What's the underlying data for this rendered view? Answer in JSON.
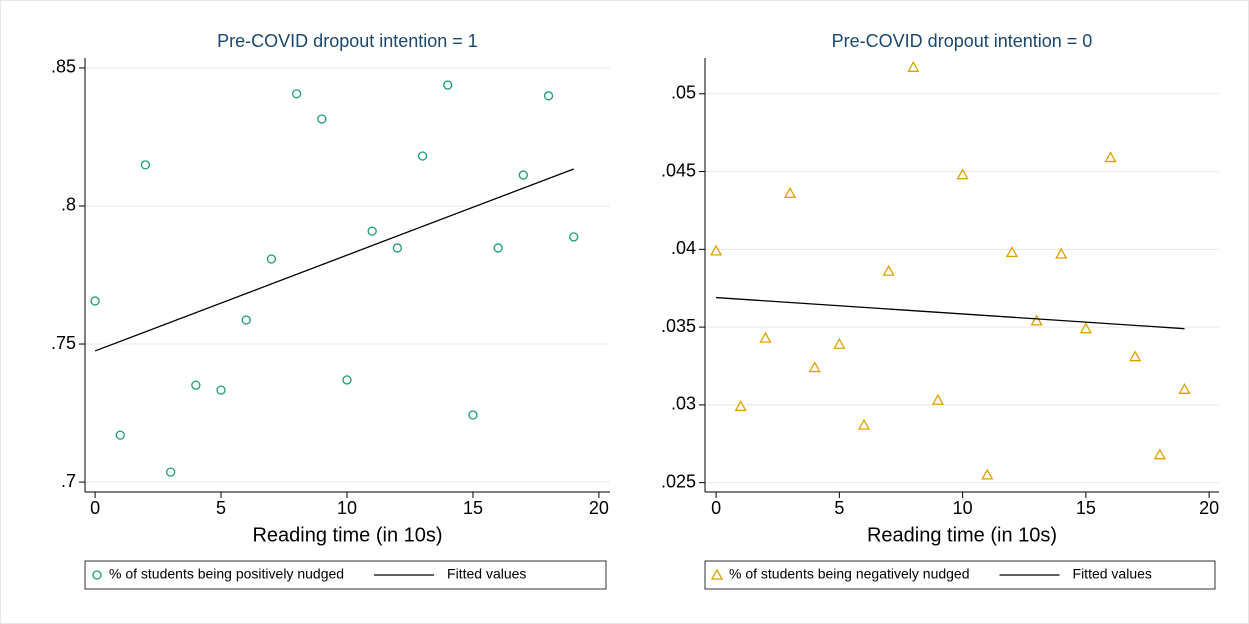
{
  "chart_data": [
    {
      "type": "scatter",
      "title": "Pre-COVID dropout intention = 1",
      "x_label": "Reading time (in 10s)",
      "xlim": [
        -0.4,
        20.44
      ],
      "xticks": [
        0,
        5,
        10,
        15,
        20
      ],
      "ylim": [
        0.6964,
        0.8536
      ],
      "yticks": [
        {
          "value": 0.7,
          "label": ".7"
        },
        {
          "value": 0.75,
          "label": ".75"
        },
        {
          "value": 0.8,
          "label": ".8"
        },
        {
          "value": 0.85,
          "label": ".85"
        }
      ],
      "grid": true,
      "legend": "bottom",
      "series": [
        {
          "name": "% of students being positively nudged",
          "color": "#1a9e77",
          "marker": "circle",
          "x": [
            0,
            1,
            2,
            3,
            4,
            5,
            6,
            7,
            8,
            9,
            10,
            11,
            12,
            13,
            14,
            15,
            16,
            17,
            18,
            19
          ],
          "values": [
            0.7656,
            0.717,
            0.8149,
            0.7036,
            0.7351,
            0.7333,
            0.7587,
            0.7808,
            0.8406,
            0.8315,
            0.737,
            0.7909,
            0.7848,
            0.8181,
            0.8438,
            0.7243,
            0.7848,
            0.8112,
            0.8399,
            0.7888
          ]
        },
        {
          "name": "Fitted values",
          "color": "#000000",
          "marker": "line",
          "x": [
            0,
            19
          ],
          "values": [
            0.7475,
            0.8134
          ]
        }
      ]
    },
    {
      "type": "scatter",
      "title": "Pre-COVID dropout intention = 0",
      "x_label": "Reading time (in 10s)",
      "xlim": [
        -0.45,
        20.4
      ],
      "xticks": [
        0,
        5,
        10,
        15,
        20
      ],
      "ylim": [
        0.0244,
        0.0523
      ],
      "yticks": [
        {
          "value": 0.025,
          "label": ".025"
        },
        {
          "value": 0.03,
          "label": ".03"
        },
        {
          "value": 0.035,
          "label": ".035"
        },
        {
          "value": 0.04,
          "label": ".04"
        },
        {
          "value": 0.045,
          "label": ".045"
        },
        {
          "value": 0.05,
          "label": ".05"
        }
      ],
      "grid": true,
      "legend": "bottom",
      "series": [
        {
          "name": "% of students being negatively nudged",
          "color": "#e0a100",
          "marker": "triangle",
          "x": [
            0,
            1,
            2,
            3,
            4,
            5,
            6,
            7,
            8,
            9,
            10,
            11,
            12,
            13,
            14,
            15,
            16,
            17,
            18,
            19
          ],
          "values": [
            0.0399,
            0.0299,
            0.0343,
            0.0436,
            0.0324,
            0.0339,
            0.0287,
            0.0386,
            0.0517,
            0.0303,
            0.0448,
            0.0255,
            0.0398,
            0.0354,
            0.0397,
            0.0349,
            0.0459,
            0.0331,
            0.0268,
            0.031
          ]
        },
        {
          "name": "Fitted values",
          "color": "#000000",
          "marker": "line",
          "x": [
            0,
            19
          ],
          "values": [
            0.0369,
            0.0349
          ]
        }
      ]
    }
  ]
}
